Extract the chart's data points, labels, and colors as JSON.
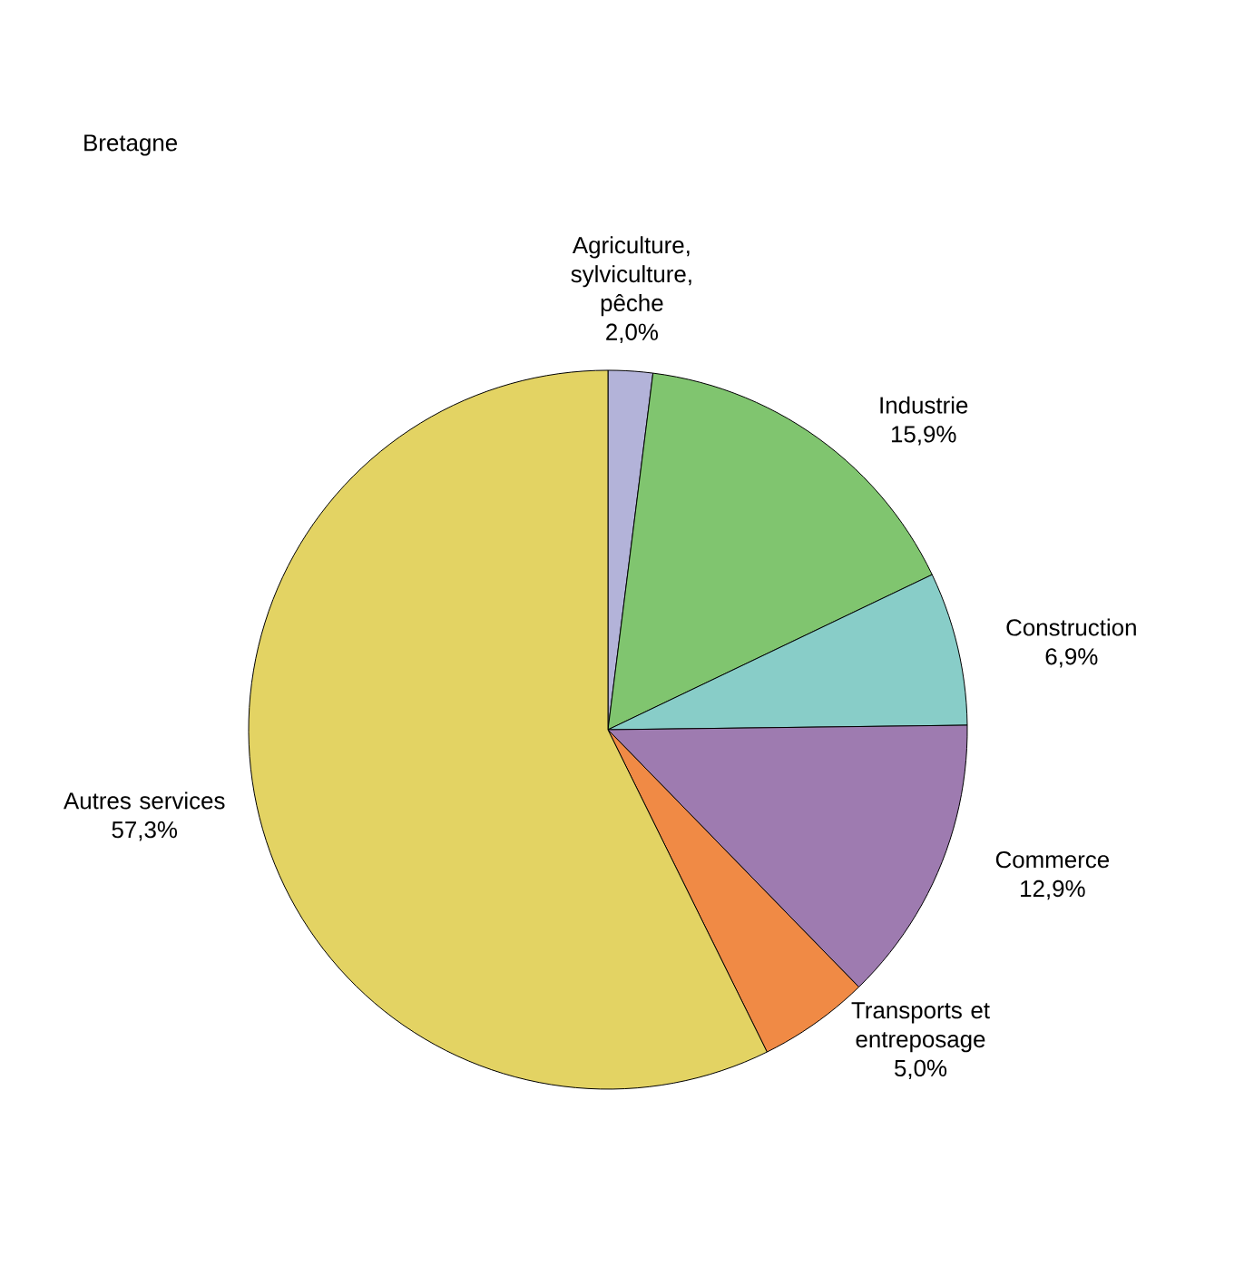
{
  "chart_data": {
    "type": "pie",
    "title": "Bretagne",
    "categories": [
      "Agriculture, sylviculture, pêche",
      "Industrie",
      "Construction",
      "Commerce",
      "Transports et entreposage",
      "Autres services"
    ],
    "values": [
      2.0,
      15.9,
      6.9,
      12.9,
      5.0,
      57.3
    ],
    "colors": [
      "#b3b3d9",
      "#80c56f",
      "#88cdc8",
      "#9e7bb0",
      "#f08a45",
      "#e3d363"
    ],
    "value_labels": [
      "2,0%",
      "15,9%",
      "6,9%",
      "12,9%",
      "5,0%",
      "57,3%"
    ]
  }
}
